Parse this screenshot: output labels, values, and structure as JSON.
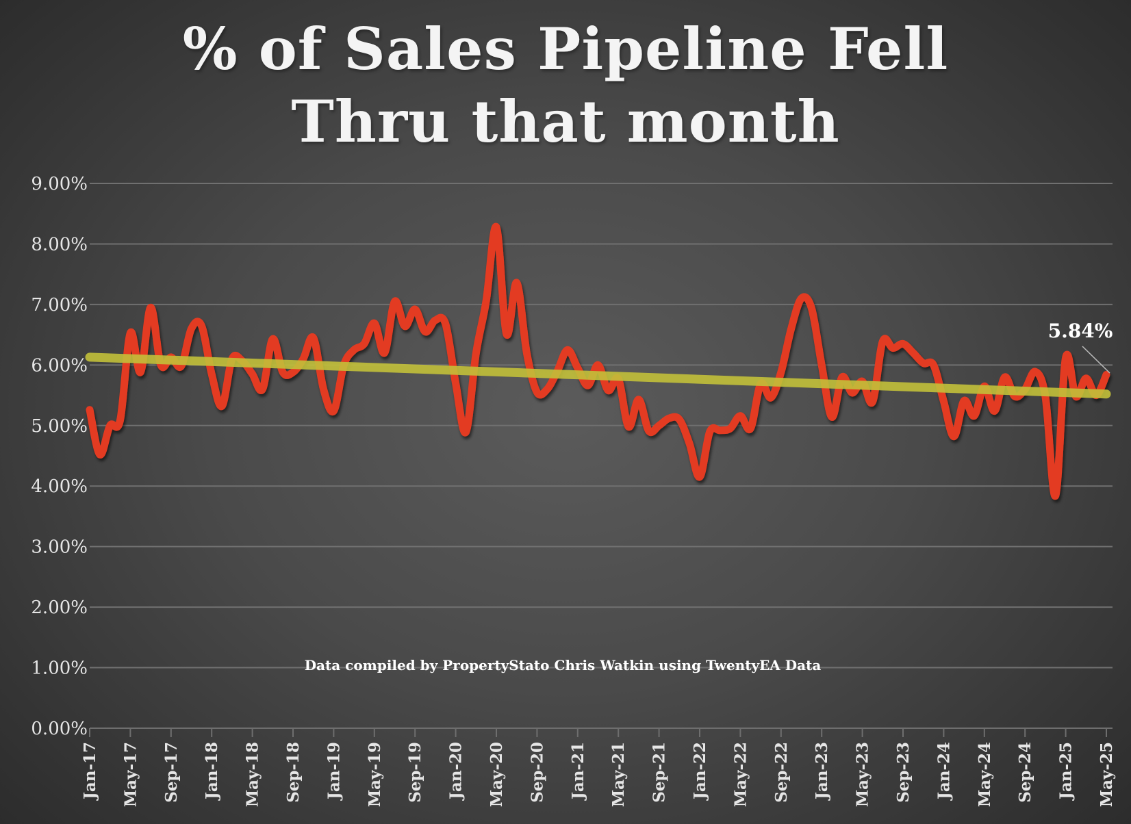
{
  "chart_data": {
    "type": "line",
    "title_lines": [
      "% of Sales Pipeline Fell",
      "Thru that month"
    ],
    "xlabel": "",
    "ylabel": "",
    "x_start": "Jan-17",
    "x_end": "May-25",
    "x_tick_labels": [
      "Jan-17",
      "May-17",
      "Sep-17",
      "Jan-18",
      "May-18",
      "Sep-18",
      "Jan-19",
      "May-19",
      "Sep-19",
      "Jan-20",
      "May-20",
      "Sep-20",
      "Jan-21",
      "May-21",
      "Sep-21",
      "Jan-22",
      "May-22",
      "Sep-22",
      "Jan-23",
      "May-23",
      "Sep-23",
      "Jan-24",
      "May-24",
      "Sep-24",
      "Jan-25",
      "May-25"
    ],
    "y_tick_labels": [
      "0.00%",
      "1.00%",
      "2.00%",
      "3.00%",
      "4.00%",
      "5.00%",
      "6.00%",
      "7.00%",
      "8.00%",
      "9.00%"
    ],
    "ylim": [
      0,
      9
    ],
    "grid": true,
    "series": [
      {
        "name": "% of Sales Pipeline Fell Thru",
        "color": "#e33a22",
        "values": [
          5.26,
          4.52,
          5.0,
          5.09,
          6.53,
          5.88,
          6.95,
          6.0,
          6.13,
          5.98,
          6.6,
          6.65,
          5.85,
          5.32,
          6.1,
          6.07,
          5.85,
          5.6,
          6.43,
          5.88,
          5.88,
          6.1,
          6.45,
          5.6,
          5.24,
          6.0,
          6.25,
          6.35,
          6.69,
          6.2,
          7.05,
          6.64,
          6.92,
          6.55,
          6.74,
          6.68,
          5.7,
          4.89,
          6.19,
          7.06,
          8.28,
          6.51,
          7.36,
          6.19,
          5.55,
          5.6,
          5.9,
          6.25,
          5.95,
          5.66,
          6.0,
          5.58,
          5.77,
          4.98,
          5.43,
          4.91,
          5.0,
          5.12,
          5.1,
          4.7,
          4.15,
          4.9,
          4.92,
          4.95,
          5.16,
          4.95,
          5.69,
          5.46,
          5.88,
          6.6,
          7.1,
          6.94,
          6.0,
          5.14,
          5.8,
          5.54,
          5.73,
          5.39,
          6.39,
          6.28,
          6.35,
          6.2,
          6.03,
          6.0,
          5.4,
          4.82,
          5.41,
          5.16,
          5.65,
          5.24,
          5.8,
          5.48,
          5.6,
          5.89,
          5.48,
          3.84,
          6.12,
          5.48,
          5.78,
          5.5,
          5.84
        ]
      },
      {
        "name": "Linear trend",
        "color": "#c2c03a",
        "values_start_end": [
          6.13,
          5.52
        ]
      }
    ],
    "annotations": {
      "last_value": "5.84%",
      "note": "Data compiled by PropertyStato Chris Watkin using TwentyEA Data"
    }
  }
}
